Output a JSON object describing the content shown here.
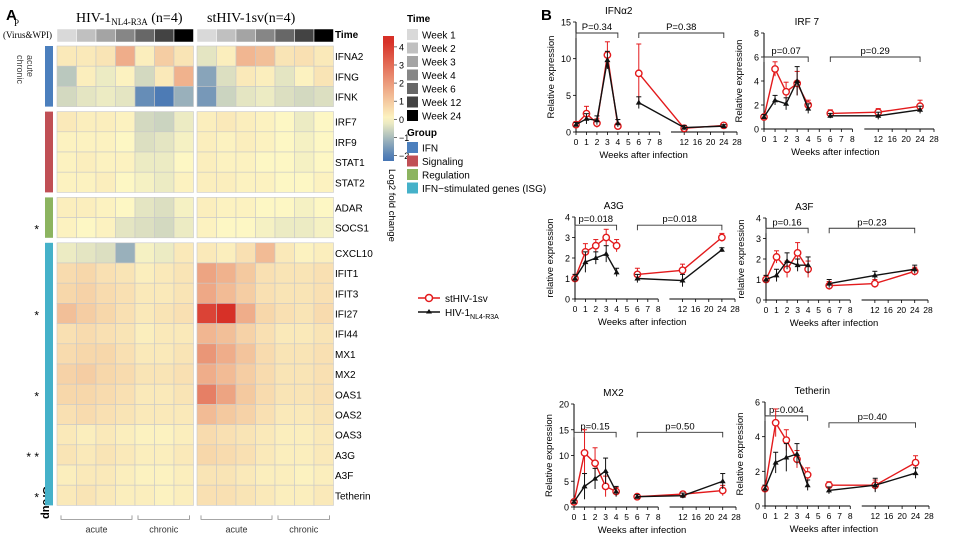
{
  "panels": {
    "a": "A",
    "b": "B"
  },
  "heatmap": {
    "group_headers": {
      "hiv_main": "HIV-1",
      "hiv_sub": "NL4-R3A",
      "hiv_n": " (n=4)",
      "st": "stHIV-1sv(n=4)"
    },
    "corner": {
      "p": "P",
      "virus_wpi": "(Virus&WPI)"
    },
    "row_group_title": "Group",
    "time_title": "Time",
    "side_labels": [
      "acute",
      "chronic"
    ],
    "col_groups": {
      "left": [
        "acute",
        "chronic"
      ],
      "right": [
        "acute",
        "chronic"
      ]
    },
    "genes": [
      "IFNA2",
      "IFNG",
      "IFNK",
      "IRF7",
      "IRF9",
      "STAT1",
      "STAT2",
      "ADAR",
      "SOCS1",
      "CXCL10",
      "IFIT1",
      "IFIT3",
      "IFI27",
      "IFI44",
      "MX1",
      "MX2",
      "OAS1",
      "OAS2",
      "OAS3",
      "A3G",
      "A3F",
      "Tetherin"
    ],
    "gene_group_index": [
      0,
      0,
      0,
      1,
      1,
      1,
      1,
      2,
      2,
      3,
      3,
      3,
      3,
      3,
      3,
      3,
      3,
      3,
      3,
      3,
      3,
      3
    ],
    "stars": [
      "",
      "",
      "",
      "",
      "",
      "",
      "",
      "",
      "*",
      "",
      "",
      "",
      "*",
      "",
      "",
      "",
      "*",
      "",
      "",
      "* *",
      "",
      "*"
    ],
    "time_index": [
      0,
      1,
      2,
      3,
      4,
      5,
      6
    ],
    "values_hiv": [
      [
        0.3,
        0.3,
        0.4,
        1.6,
        0.2,
        0.9,
        0.4
      ],
      [
        -0.8,
        0.2,
        -0.2,
        0.1,
        -0.5,
        0.3,
        1.5
      ],
      [
        -0.5,
        -0.3,
        -0.2,
        -0.3,
        -1.8,
        -2.1,
        -1.2
      ],
      [
        0.3,
        0.2,
        0.2,
        0.1,
        -0.5,
        -0.6,
        -0.2
      ],
      [
        0.1,
        0.1,
        0.1,
        0.0,
        -0.4,
        -0.3,
        -0.1
      ],
      [
        0.1,
        0.2,
        0.1,
        0.1,
        -0.2,
        -0.2,
        0.0
      ],
      [
        0.1,
        0.1,
        0.2,
        0.0,
        -0.1,
        -0.2,
        0.1
      ],
      [
        0.2,
        0.2,
        0.1,
        0.0,
        -0.3,
        -0.4,
        -0.1
      ],
      [
        0.1,
        0.0,
        0.1,
        -0.3,
        -0.4,
        -0.5,
        -0.2
      ],
      [
        -0.2,
        -0.3,
        -0.4,
        -1.2,
        -0.1,
        -0.2,
        0.3
      ],
      [
        0.6,
        0.7,
        0.5,
        0.4,
        0.2,
        0.3,
        0.4
      ],
      [
        0.7,
        0.8,
        0.6,
        0.5,
        0.3,
        0.3,
        0.4
      ],
      [
        1.2,
        0.9,
        0.7,
        0.5,
        0.3,
        0.4,
        0.5
      ],
      [
        0.5,
        0.6,
        0.5,
        0.4,
        0.2,
        0.3,
        0.3
      ],
      [
        0.6,
        0.7,
        0.7,
        0.5,
        0.3,
        0.3,
        0.4
      ],
      [
        0.8,
        0.9,
        0.7,
        0.6,
        0.4,
        0.4,
        0.5
      ],
      [
        0.7,
        0.7,
        0.6,
        0.5,
        0.3,
        0.3,
        0.4
      ],
      [
        0.5,
        0.6,
        0.5,
        0.4,
        0.3,
        0.3,
        0.3
      ],
      [
        0.3,
        0.2,
        0.3,
        0.2,
        0.1,
        0.1,
        0.2
      ],
      [
        0.4,
        0.3,
        0.4,
        0.3,
        0.2,
        0.2,
        0.3
      ],
      [
        0.2,
        0.3,
        0.3,
        0.2,
        0.1,
        0.1,
        0.2
      ],
      [
        0.3,
        0.4,
        0.3,
        0.2,
        0.2,
        0.1,
        0.2
      ]
    ],
    "values_st": [
      [
        -0.3,
        0.2,
        1.4,
        1.2,
        0.4,
        0.5,
        0.3
      ],
      [
        -1.4,
        -0.4,
        0.3,
        0.2,
        -0.3,
        0.1,
        0.4
      ],
      [
        -1.6,
        -0.6,
        -0.3,
        -0.2,
        -0.4,
        -0.5,
        -0.4
      ],
      [
        0.2,
        0.3,
        0.2,
        0.1,
        0.0,
        -0.2,
        0.0
      ],
      [
        0.2,
        0.1,
        0.2,
        0.1,
        0.0,
        -0.1,
        0.0
      ],
      [
        0.2,
        0.1,
        0.1,
        0.0,
        0.0,
        -0.1,
        0.0
      ],
      [
        0.2,
        0.2,
        0.1,
        0.1,
        0.0,
        0.0,
        0.1
      ],
      [
        0.2,
        0.1,
        0.1,
        0.0,
        0.0,
        -0.1,
        0.0
      ],
      [
        0.1,
        0.0,
        0.0,
        -0.1,
        -0.2,
        -0.2,
        -0.1
      ],
      [
        0.3,
        0.2,
        0.5,
        1.3,
        0.3,
        0.1,
        0.2
      ],
      [
        1.8,
        1.5,
        1.0,
        0.5,
        0.4,
        0.4,
        0.5
      ],
      [
        1.7,
        1.3,
        0.9,
        0.5,
        0.4,
        0.4,
        0.5
      ],
      [
        3.9,
        4.3,
        1.6,
        0.7,
        0.5,
        0.4,
        0.6
      ],
      [
        1.4,
        1.2,
        0.8,
        0.5,
        0.3,
        0.3,
        0.4
      ],
      [
        2.1,
        1.6,
        1.1,
        0.6,
        0.4,
        0.4,
        0.5
      ],
      [
        1.6,
        1.3,
        0.9,
        0.6,
        0.4,
        0.4,
        0.5
      ],
      [
        2.6,
        1.8,
        1.0,
        0.6,
        0.4,
        0.4,
        0.5
      ],
      [
        1.3,
        1.0,
        0.8,
        0.5,
        0.3,
        0.3,
        0.4
      ],
      [
        0.6,
        0.5,
        0.4,
        0.3,
        0.2,
        0.2,
        0.3
      ],
      [
        0.7,
        0.6,
        0.5,
        0.3,
        0.2,
        0.2,
        0.3
      ],
      [
        0.4,
        0.4,
        0.3,
        0.2,
        0.2,
        0.1,
        0.2
      ],
      [
        0.5,
        0.5,
        0.4,
        0.3,
        0.2,
        0.2,
        0.3
      ]
    ],
    "colorbar": {
      "ticks": [
        4,
        3,
        2,
        1,
        0,
        -1,
        -2
      ],
      "min": -2.3,
      "max": 4.6,
      "label": "Log2 fold change"
    },
    "time_legend": {
      "title": "Time",
      "items": [
        "Week 1",
        "Week 2",
        "Week 3",
        "Week 4",
        "Week 6",
        "Week 12",
        "Week 24"
      ],
      "colors": [
        "#d9d9d9",
        "#c0c0c0",
        "#a4a4a4",
        "#868686",
        "#676767",
        "#434343",
        "#000000"
      ]
    },
    "group_legend": {
      "title": "Group",
      "items": [
        "IFN",
        "Signaling",
        "Regulation",
        "IFN−stimulated genes (ISG)"
      ],
      "colors": [
        "#4b7fbd",
        "#c04f55",
        "#8cb460",
        "#45b1c9"
      ]
    },
    "scale_colors": {
      "neg": "#4575b4",
      "mid": "#fdf7c4",
      "pos": "#d73027"
    }
  },
  "line_legend": {
    "st": "stHIV-1sv",
    "hiv_main": "HIV-1",
    "hiv_sub": "NL4-R3A"
  },
  "colors": {
    "st": "#e31a1c",
    "hiv": "#111111"
  },
  "chart_data": [
    {
      "type": "line",
      "title": "IFNα2",
      "ylabel": "Relative expression",
      "xlabel": "Weeks after infection",
      "x": [
        0,
        1,
        2,
        3,
        4,
        6,
        12,
        24
      ],
      "ylim": [
        0,
        15
      ],
      "yticks": [
        0,
        5,
        10,
        15
      ],
      "xticks": [
        0,
        1,
        2,
        3,
        4,
        5,
        6,
        7,
        8,
        12,
        16,
        20,
        24,
        28
      ],
      "series": [
        {
          "name": "stHIV-1sv",
          "values": [
            1.0,
            2.5,
            1.2,
            10.5,
            0.8,
            8.0,
            0.5,
            0.9
          ],
          "err": [
            0.4,
            1.0,
            0.6,
            1.8,
            0.4,
            4.0,
            0.3,
            0.3
          ]
        },
        {
          "name": "HIV-1 NL4-R3A",
          "values": [
            1.0,
            1.8,
            1.6,
            9.8,
            1.2,
            4.0,
            0.6,
            0.8
          ],
          "err": [
            0.3,
            0.7,
            0.6,
            1.2,
            0.5,
            0.8,
            0.3,
            0.2
          ]
        }
      ],
      "brackets": [
        {
          "x1": 0,
          "x2": 4,
          "y": 13.5,
          "label": "P=0.34"
        },
        {
          "x1": 6,
          "x2": 24,
          "y": 13.5,
          "label": "P=0.38"
        }
      ]
    },
    {
      "type": "line",
      "title": "IRF 7",
      "ylabel": "Relative expression",
      "xlabel": "Weeks after infection",
      "x": [
        0,
        1,
        2,
        3,
        4,
        6,
        12,
        24
      ],
      "ylim": [
        0,
        8
      ],
      "yticks": [
        0,
        2,
        4,
        6,
        8
      ],
      "xticks": [
        0,
        1,
        2,
        3,
        4,
        5,
        6,
        7,
        8,
        12,
        16,
        20,
        24,
        28
      ],
      "series": [
        {
          "name": "stHIV-1sv",
          "values": [
            1.0,
            5.0,
            3.1,
            3.8,
            2.0,
            1.3,
            1.4,
            1.9
          ],
          "err": [
            0.2,
            0.6,
            0.8,
            1.0,
            0.4,
            0.3,
            0.3,
            0.5
          ]
        },
        {
          "name": "HIV-1 NL4-R3A",
          "values": [
            1.0,
            2.4,
            2.1,
            4.0,
            1.7,
            1.1,
            1.1,
            1.6
          ],
          "err": [
            0.2,
            0.4,
            0.5,
            1.2,
            0.4,
            0.2,
            0.3,
            0.3
          ]
        }
      ],
      "brackets": [
        {
          "x1": 0,
          "x2": 4,
          "y": 6.0,
          "label": "p=0.07"
        },
        {
          "x1": 6,
          "x2": 24,
          "y": 6.0,
          "label": "p=0.29"
        }
      ]
    },
    {
      "type": "line",
      "title": "A3G",
      "ylabel": "relative expression",
      "xlabel": "Weeks after infection",
      "x": [
        0,
        1,
        2,
        3,
        4,
        6,
        12,
        24
      ],
      "ylim": [
        0,
        4
      ],
      "yticks": [
        0,
        1,
        2,
        3,
        4
      ],
      "xticks": [
        0,
        1,
        2,
        3,
        4,
        5,
        6,
        7,
        8,
        12,
        16,
        20,
        24,
        28
      ],
      "series": [
        {
          "name": "stHIV-1sv",
          "values": [
            1.0,
            2.3,
            2.6,
            3.0,
            2.6,
            1.2,
            1.4,
            3.0
          ],
          "err": [
            0.2,
            0.4,
            0.3,
            0.4,
            0.3,
            0.3,
            0.3,
            0.2
          ]
        },
        {
          "name": "HIV-1 NL4-R3A",
          "values": [
            1.0,
            1.8,
            2.0,
            2.2,
            1.3,
            1.0,
            0.9,
            2.4
          ],
          "err": [
            0.2,
            0.5,
            0.3,
            0.4,
            0.2,
            0.2,
            0.3,
            0.1
          ]
        }
      ],
      "brackets": [
        {
          "x1": 0,
          "x2": 4,
          "y": 3.6,
          "label": "p=0.018"
        },
        {
          "x1": 6,
          "x2": 24,
          "y": 3.6,
          "label": "p=0.018"
        }
      ]
    },
    {
      "type": "line",
      "title": "A3F",
      "ylabel": "relative expression",
      "xlabel": "Weeks after infection",
      "x": [
        0,
        1,
        2,
        3,
        4,
        6,
        12,
        24
      ],
      "ylim": [
        0,
        4
      ],
      "yticks": [
        0,
        1,
        2,
        3,
        4
      ],
      "xticks": [
        0,
        1,
        2,
        3,
        4,
        5,
        6,
        7,
        8,
        12,
        16,
        20,
        24,
        28
      ],
      "series": [
        {
          "name": "stHIV-1sv",
          "values": [
            1.0,
            2.1,
            1.5,
            2.3,
            1.5,
            0.7,
            0.8,
            1.4
          ],
          "err": [
            0.2,
            0.3,
            0.4,
            0.5,
            0.4,
            0.2,
            0.2,
            0.2
          ]
        },
        {
          "name": "HIV-1 NL4-R3A",
          "values": [
            1.0,
            1.2,
            1.9,
            1.7,
            1.7,
            0.8,
            1.2,
            1.5
          ],
          "err": [
            0.2,
            0.3,
            0.4,
            0.3,
            0.4,
            0.2,
            0.2,
            0.2
          ]
        }
      ],
      "brackets": [
        {
          "x1": 0,
          "x2": 4,
          "y": 3.5,
          "label": "p=0.16"
        },
        {
          "x1": 6,
          "x2": 24,
          "y": 3.5,
          "label": "p=0.23"
        }
      ]
    },
    {
      "type": "line",
      "title": "MX2",
      "ylabel": "Relative expression",
      "xlabel": "Weeks after infection",
      "x": [
        0,
        1,
        2,
        3,
        4,
        6,
        12,
        24
      ],
      "ylim": [
        0,
        20
      ],
      "yticks": [
        0,
        5,
        10,
        15,
        20
      ],
      "xticks": [
        0,
        1,
        2,
        3,
        4,
        5,
        6,
        7,
        8,
        12,
        16,
        20,
        24,
        28
      ],
      "series": [
        {
          "name": "stHIV-1sv",
          "values": [
            1.0,
            10.5,
            8.5,
            4.0,
            3.0,
            2.0,
            2.5,
            3.2
          ],
          "err": [
            0.3,
            4.5,
            3.0,
            2.0,
            0.8,
            0.4,
            0.5,
            1.0
          ]
        },
        {
          "name": "HIV-1 NL4-R3A",
          "values": [
            1.0,
            4.0,
            5.5,
            7.0,
            3.0,
            2.0,
            2.2,
            5.0
          ],
          "err": [
            0.3,
            2.5,
            2.0,
            2.5,
            1.0,
            0.4,
            0.5,
            1.5
          ]
        }
      ],
      "brackets": [
        {
          "x1": 0,
          "x2": 4,
          "y": 14.5,
          "label": "p=0.15"
        },
        {
          "x1": 6,
          "x2": 24,
          "y": 14.5,
          "label": "p=0.50"
        }
      ]
    },
    {
      "type": "line",
      "title": "Tetherin",
      "ylabel": "Relative expression",
      "xlabel": "Weeks after infection",
      "x": [
        0,
        1,
        2,
        3,
        4,
        6,
        12,
        24
      ],
      "ylim": [
        0,
        6
      ],
      "yticks": [
        0,
        2,
        4,
        6
      ],
      "xticks": [
        0,
        1,
        2,
        3,
        4,
        5,
        6,
        7,
        8,
        12,
        16,
        20,
        24,
        28
      ],
      "series": [
        {
          "name": "stHIV-1sv",
          "values": [
            1.0,
            4.8,
            3.8,
            2.7,
            1.8,
            1.2,
            1.2,
            2.5
          ],
          "err": [
            0.2,
            0.8,
            0.6,
            0.5,
            0.4,
            0.2,
            0.3,
            0.4
          ]
        },
        {
          "name": "HIV-1 NL4-R3A",
          "values": [
            1.0,
            2.5,
            2.8,
            3.0,
            1.2,
            0.9,
            1.2,
            1.9
          ],
          "err": [
            0.2,
            0.6,
            0.8,
            0.6,
            0.3,
            0.2,
            0.4,
            0.3
          ]
        }
      ],
      "brackets": [
        {
          "x1": 0,
          "x2": 4,
          "y": 5.2,
          "label": "p=0.004"
        },
        {
          "x1": 6,
          "x2": 24,
          "y": 4.8,
          "label": "p=0.40"
        }
      ]
    }
  ]
}
